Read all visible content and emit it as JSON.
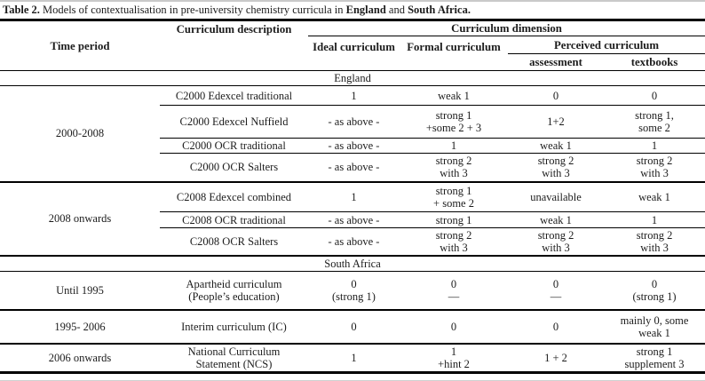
{
  "caption": {
    "label": "Table 2.",
    "text": " Models of contextualisation in pre-university chemistry curricula in ",
    "country1": "England",
    "conjunction": " and ",
    "country2": "South Africa."
  },
  "header": {
    "time_period": "Time period",
    "curriculum_description": "Curriculum description",
    "curriculum_dimension": "Curriculum dimension",
    "ideal": "Ideal curriculum",
    "formal": "Formal curriculum",
    "perceived": "Perceived curriculum",
    "assessment": "assessment",
    "textbooks": "textbooks"
  },
  "colors": {
    "ink": "#1c1c1c",
    "rule": "#000000",
    "background": "#ffffff"
  },
  "sections": [
    {
      "name": "England",
      "groups": [
        {
          "time_period": "2000-2008",
          "rows": [
            {
              "description": "C2000 Edexcel traditional",
              "ideal": "1",
              "formal": "weak 1",
              "assessment": "0",
              "textbooks": "0"
            },
            {
              "description": "C2000 Edexcel Nuffield",
              "ideal": "- as above -",
              "formal": "strong 1\n+some 2 + 3",
              "assessment": "1+2",
              "textbooks": "strong 1,\nsome 2"
            },
            {
              "description": "C2000 OCR traditional",
              "ideal": "- as above -",
              "formal": "1",
              "assessment": "weak 1",
              "textbooks": "1"
            },
            {
              "description": "C2000 OCR Salters",
              "ideal": "- as above -",
              "formal": "strong 2\nwith 3",
              "assessment": "strong 2\nwith 3",
              "textbooks": "strong 2\nwith 3"
            }
          ]
        },
        {
          "time_period": "2008 onwards",
          "rows": [
            {
              "description": "C2008 Edexcel combined",
              "ideal": "1",
              "formal": "strong 1\n+ some 2",
              "assessment": "unavailable",
              "textbooks": "weak 1"
            },
            {
              "description": "C2008 OCR traditional",
              "ideal": "- as above -",
              "formal": "strong 1",
              "assessment": "weak 1",
              "textbooks": "1"
            },
            {
              "description": "C2008 OCR Salters",
              "ideal": "- as above -",
              "formal": "strong 2\nwith 3",
              "assessment": "strong 2\nwith 3",
              "textbooks": "strong 2\nwith 3"
            }
          ]
        }
      ]
    },
    {
      "name": "South Africa",
      "groups": [
        {
          "time_period": "Until 1995",
          "rows": [
            {
              "description": "Apartheid curriculum\n(People’s education)",
              "ideal": "0\n(strong 1)",
              "formal": "0\n—",
              "assessment": "0\n—",
              "textbooks": "0\n(strong 1)"
            }
          ]
        },
        {
          "time_period": "1995- 2006",
          "rows": [
            {
              "description": "Interim curriculum (IC)",
              "ideal": "0",
              "formal": "0",
              "assessment": "0",
              "textbooks": "mainly 0, some\nweak 1"
            }
          ]
        },
        {
          "time_period": "2006 onwards",
          "rows": [
            {
              "description": "National Curriculum\nStatement (NCS)",
              "ideal": "1",
              "formal": "1\n+hint 2",
              "assessment": "1 + 2",
              "textbooks": "strong 1\nsupplement 3"
            }
          ]
        }
      ]
    }
  ]
}
